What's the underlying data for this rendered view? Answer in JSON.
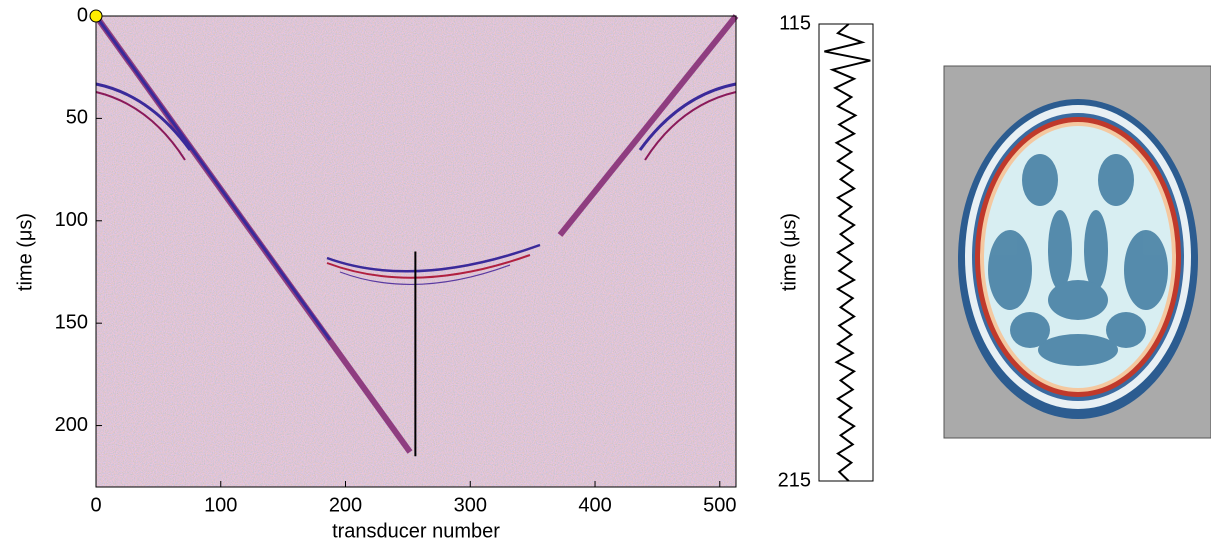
{
  "chart_data": [
    {
      "type": "image",
      "xlabel": "transducer number",
      "ylabel": "time (μs)",
      "xlim": [
        0,
        513
      ],
      "ylim": [
        0,
        230
      ],
      "xticks": [
        0,
        100,
        200,
        300,
        400,
        500
      ],
      "yticks": [
        0,
        50,
        100,
        150,
        200
      ],
      "source": {
        "x": 0,
        "y": 0,
        "color": "#ffee00"
      },
      "marker_line": {
        "x": 256,
        "y": [
          115,
          215
        ],
        "color": "#000000"
      }
    },
    {
      "type": "trace",
      "ylabel": "time (μs)",
      "ylim": [
        115,
        215
      ],
      "yticks": [
        115,
        215
      ],
      "xlim": [
        -1,
        1
      ],
      "color": "#000000",
      "y": [
        115,
        117,
        119,
        121,
        123,
        125,
        127,
        129,
        131,
        133,
        135,
        137,
        139,
        141,
        143,
        145,
        147,
        149,
        151,
        153,
        155,
        157,
        159,
        161,
        163,
        165,
        167,
        169,
        171,
        173,
        175,
        177,
        179,
        181,
        183,
        185,
        187,
        189,
        191,
        193,
        195,
        197,
        199,
        201,
        203,
        205,
        207,
        209,
        211,
        213,
        215
      ],
      "values": [
        0.1,
        -0.3,
        0.6,
        -0.8,
        0.9,
        -0.5,
        0.3,
        -0.4,
        0.2,
        -0.3,
        0.35,
        -0.25,
        0.3,
        -0.35,
        0.2,
        -0.3,
        0.25,
        -0.2,
        0.3,
        -0.3,
        0.2,
        -0.25,
        0.3,
        -0.2,
        0.25,
        -0.3,
        0.2,
        -0.25,
        0.3,
        -0.3,
        0.25,
        -0.2,
        0.3,
        -0.25,
        0.2,
        -0.3,
        0.25,
        -0.35,
        0.3,
        -0.2,
        0.25,
        -0.3,
        0.2,
        -0.25,
        0.3,
        -0.2,
        0.25,
        -0.3,
        0.2,
        -0.25,
        0.1
      ]
    }
  ]
}
